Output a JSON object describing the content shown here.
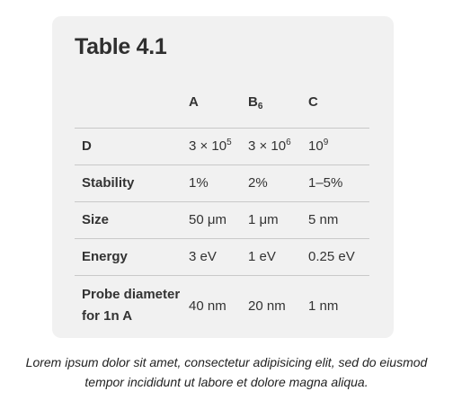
{
  "table": {
    "title": "Table 4.1",
    "columns": {
      "a": "A",
      "b_base": "B",
      "b_sub": "6",
      "c": "C"
    },
    "rows": [
      {
        "label": "D",
        "a_base": "3 × 10",
        "a_sup": "5",
        "b_base": "3 × 10",
        "b_sup": "6",
        "c_base": "10",
        "c_sup": "9"
      },
      {
        "label": "Stability",
        "a": "1%",
        "b": "2%",
        "c": "1–5%"
      },
      {
        "label": "Size",
        "a": "50 μm",
        "b": "1 μm",
        "c": "5 nm"
      },
      {
        "label": "Energy",
        "a": "3 eV",
        "b": "1 eV",
        "c": "0.25 eV"
      },
      {
        "label": "Probe diameter for 1n A",
        "a": "40 nm",
        "b": "20 nm",
        "c": "1 nm"
      }
    ]
  },
  "caption": {
    "line1": "Lorem ipsum dolor sit amet, consectetur adipisicing elit, sed do eiusmod",
    "line2": "tempor incididunt ut labore et dolore magna aliqua."
  }
}
